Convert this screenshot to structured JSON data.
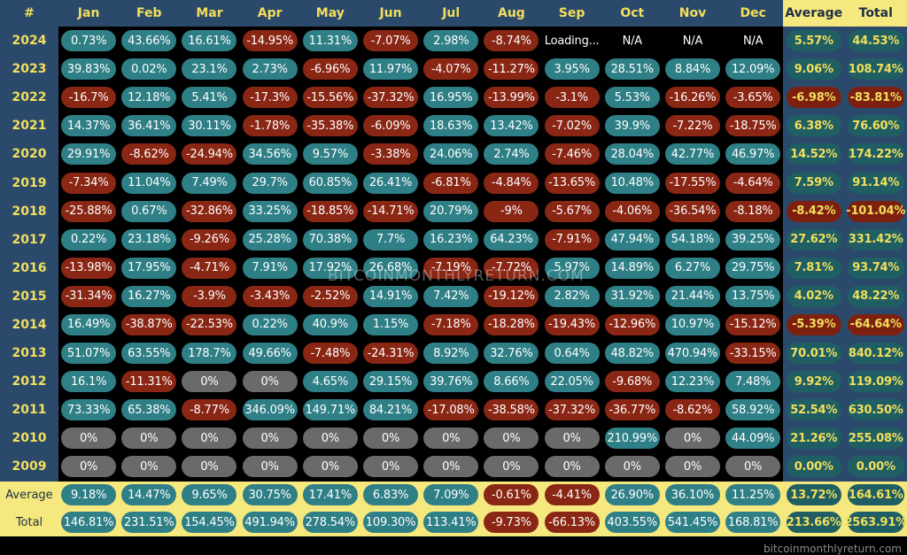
{
  "chart_data": {
    "type": "heatmap",
    "corner_label": "#",
    "columns": [
      "Jan",
      "Feb",
      "Mar",
      "Apr",
      "May",
      "Jun",
      "Jul",
      "Aug",
      "Sep",
      "Oct",
      "Nov",
      "Dec"
    ],
    "summary_columns": [
      "Average",
      "Total"
    ],
    "rows": [
      {
        "year": "2024",
        "values": [
          "0.73%",
          "43.66%",
          "16.61%",
          "-14.95%",
          "11.31%",
          "-7.07%",
          "2.98%",
          "-8.74%",
          "Loading...",
          "N/A",
          "N/A",
          "N/A"
        ],
        "average": "5.57%",
        "total": "44.53%"
      },
      {
        "year": "2023",
        "values": [
          "39.83%",
          "0.02%",
          "23.1%",
          "2.73%",
          "-6.96%",
          "11.97%",
          "-4.07%",
          "-11.27%",
          "3.95%",
          "28.51%",
          "8.84%",
          "12.09%"
        ],
        "average": "9.06%",
        "total": "108.74%"
      },
      {
        "year": "2022",
        "values": [
          "-16.7%",
          "12.18%",
          "5.41%",
          "-17.3%",
          "-15.56%",
          "-37.32%",
          "16.95%",
          "-13.99%",
          "-3.1%",
          "5.53%",
          "-16.26%",
          "-3.65%"
        ],
        "average": "-6.98%",
        "total": "-83.81%"
      },
      {
        "year": "2021",
        "values": [
          "14.37%",
          "36.41%",
          "30.11%",
          "-1.78%",
          "-35.38%",
          "-6.09%",
          "18.63%",
          "13.42%",
          "-7.02%",
          "39.9%",
          "-7.22%",
          "-18.75%"
        ],
        "average": "6.38%",
        "total": "76.60%"
      },
      {
        "year": "2020",
        "values": [
          "29.91%",
          "-8.62%",
          "-24.94%",
          "34.56%",
          "9.57%",
          "-3.38%",
          "24.06%",
          "2.74%",
          "-7.46%",
          "28.04%",
          "42.77%",
          "46.97%"
        ],
        "average": "14.52%",
        "total": "174.22%"
      },
      {
        "year": "2019",
        "values": [
          "-7.34%",
          "11.04%",
          "7.49%",
          "29.7%",
          "60.85%",
          "26.41%",
          "-6.81%",
          "-4.84%",
          "-13.65%",
          "10.48%",
          "-17.55%",
          "-4.64%"
        ],
        "average": "7.59%",
        "total": "91.14%"
      },
      {
        "year": "2018",
        "values": [
          "-25.88%",
          "0.67%",
          "-32.86%",
          "33.25%",
          "-18.85%",
          "-14.71%",
          "20.79%",
          "-9%",
          "-5.67%",
          "-4.06%",
          "-36.54%",
          "-8.18%"
        ],
        "average": "-8.42%",
        "total": "-101.04%"
      },
      {
        "year": "2017",
        "values": [
          "0.22%",
          "23.18%",
          "-9.26%",
          "25.28%",
          "70.38%",
          "7.7%",
          "16.23%",
          "64.23%",
          "-7.91%",
          "47.94%",
          "54.18%",
          "39.25%"
        ],
        "average": "27.62%",
        "total": "331.42%"
      },
      {
        "year": "2016",
        "values": [
          "-13.98%",
          "17.95%",
          "-4.71%",
          "7.91%",
          "17.92%",
          "26.68%",
          "-7.19%",
          "-7.72%",
          "5.97%",
          "14.89%",
          "6.27%",
          "29.75%"
        ],
        "average": "7.81%",
        "total": "93.74%"
      },
      {
        "year": "2015",
        "values": [
          "-31.34%",
          "16.27%",
          "-3.9%",
          "-3.43%",
          "-2.52%",
          "14.91%",
          "7.42%",
          "-19.12%",
          "2.82%",
          "31.92%",
          "21.44%",
          "13.75%"
        ],
        "average": "4.02%",
        "total": "48.22%"
      },
      {
        "year": "2014",
        "values": [
          "16.49%",
          "-38.87%",
          "-22.53%",
          "0.22%",
          "40.9%",
          "1.15%",
          "-7.18%",
          "-18.28%",
          "-19.43%",
          "-12.96%",
          "10.97%",
          "-15.12%"
        ],
        "average": "-5.39%",
        "total": "-64.64%"
      },
      {
        "year": "2013",
        "values": [
          "51.07%",
          "63.55%",
          "178.7%",
          "49.66%",
          "-7.48%",
          "-24.31%",
          "8.92%",
          "32.76%",
          "0.64%",
          "48.82%",
          "470.94%",
          "-33.15%"
        ],
        "average": "70.01%",
        "total": "840.12%"
      },
      {
        "year": "2012",
        "values": [
          "16.1%",
          "-11.31%",
          "0%",
          "0%",
          "4.65%",
          "29.15%",
          "39.76%",
          "8.66%",
          "22.05%",
          "-9.68%",
          "12.23%",
          "7.48%"
        ],
        "average": "9.92%",
        "total": "119.09%"
      },
      {
        "year": "2011",
        "values": [
          "73.33%",
          "65.38%",
          "-8.77%",
          "346.09%",
          "149.71%",
          "84.21%",
          "-17.08%",
          "-38.58%",
          "-37.32%",
          "-36.77%",
          "-8.62%",
          "58.92%"
        ],
        "average": "52.54%",
        "total": "630.50%"
      },
      {
        "year": "2010",
        "values": [
          "0%",
          "0%",
          "0%",
          "0%",
          "0%",
          "0%",
          "0%",
          "0%",
          "0%",
          "210.99%",
          "0%",
          "44.09%"
        ],
        "average": "21.26%",
        "total": "255.08%"
      },
      {
        "year": "2009",
        "values": [
          "0%",
          "0%",
          "0%",
          "0%",
          "0%",
          "0%",
          "0%",
          "0%",
          "0%",
          "0%",
          "0%",
          "0%"
        ],
        "average": "0.00%",
        "total": "0.00%"
      }
    ],
    "footer_rows": [
      {
        "label": "Average",
        "values": [
          "9.18%",
          "14.47%",
          "9.65%",
          "30.75%",
          "17.41%",
          "6.83%",
          "7.09%",
          "-0.61%",
          "-4.41%",
          "26.90%",
          "36.10%",
          "11.25%"
        ],
        "average": "13.72%",
        "total": "164.61%"
      },
      {
        "label": "Total",
        "values": [
          "146.81%",
          "231.51%",
          "154.45%",
          "491.94%",
          "278.54%",
          "109.30%",
          "113.41%",
          "-9.73%",
          "-66.13%",
          "403.55%",
          "541.45%",
          "168.81%"
        ],
        "average": "213.66%",
        "total": "2563.91%"
      }
    ],
    "colors": {
      "positive": "#2f7f86",
      "negative": "#8a2614",
      "zero": "#6a6a6a",
      "header": "#2b4a6b",
      "highlight": "#f4e87e",
      "accent_text": "#f3df5b"
    }
  },
  "watermark": "BITCOINMONTHLYRETURN.COM",
  "source": "bitcoinmonthlyreturn.com"
}
